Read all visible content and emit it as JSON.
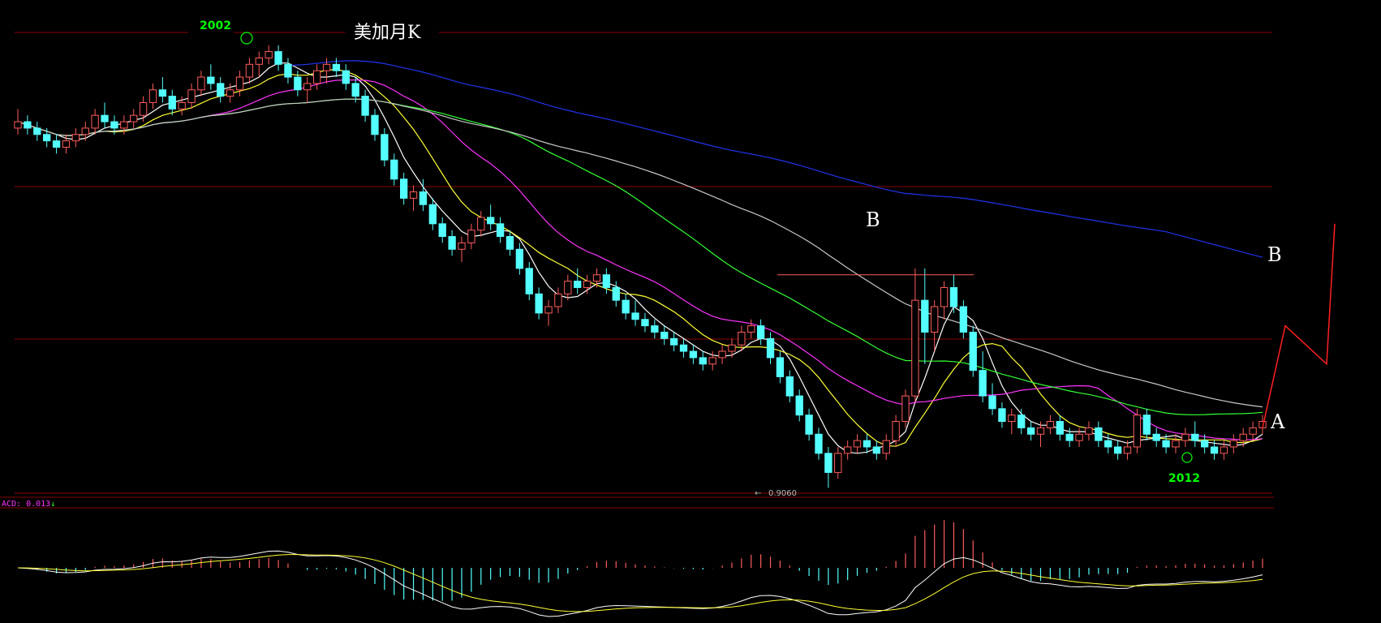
{
  "title": "美加月K",
  "annotations": {
    "year_high": "2002",
    "year_low": "2012",
    "wave_b_mid": "B",
    "wave_b_right": "B",
    "wave_a": "A",
    "low_value": "0.9060"
  },
  "macd_label": {
    "prefix": "ACD: 0.013",
    "arrow": "↓"
  },
  "colors": {
    "up": "#ff5c5c",
    "down": "#54ffff",
    "ma5": "#ffffff",
    "ma10": "#ffff33",
    "ma20": "#ff33ff",
    "ma40": "#33ff33",
    "ma60": "#c8c8c8",
    "ma120": "#2233ee",
    "grid": "#8b0000",
    "projection": "#ff2020",
    "macd_dif": "#ffffff",
    "macd_dea": "#ffff33"
  },
  "chart_data": {
    "type": "candlestick",
    "instrument": "美加月K",
    "y_range": [
      0.9,
      1.62
    ],
    "key_points": [
      {
        "label": "2002",
        "value": 1.6
      },
      {
        "label": "2012",
        "value": 0.95
      },
      {
        "label": "0.9060",
        "value": 0.906
      }
    ],
    "ohlc": [
      [
        1.47,
        1.5,
        1.46,
        1.48
      ],
      [
        1.48,
        1.49,
        1.46,
        1.47
      ],
      [
        1.47,
        1.48,
        1.45,
        1.46
      ],
      [
        1.46,
        1.47,
        1.44,
        1.45
      ],
      [
        1.45,
        1.46,
        1.43,
        1.44
      ],
      [
        1.44,
        1.46,
        1.43,
        1.45
      ],
      [
        1.45,
        1.47,
        1.44,
        1.46
      ],
      [
        1.46,
        1.48,
        1.45,
        1.47
      ],
      [
        1.47,
        1.5,
        1.46,
        1.49
      ],
      [
        1.49,
        1.51,
        1.47,
        1.48
      ],
      [
        1.48,
        1.49,
        1.46,
        1.47
      ],
      [
        1.47,
        1.49,
        1.46,
        1.48
      ],
      [
        1.48,
        1.5,
        1.47,
        1.49
      ],
      [
        1.49,
        1.52,
        1.48,
        1.51
      ],
      [
        1.51,
        1.54,
        1.5,
        1.53
      ],
      [
        1.53,
        1.55,
        1.51,
        1.52
      ],
      [
        1.52,
        1.53,
        1.49,
        1.5
      ],
      [
        1.5,
        1.52,
        1.49,
        1.51
      ],
      [
        1.51,
        1.54,
        1.5,
        1.53
      ],
      [
        1.53,
        1.56,
        1.52,
        1.55
      ],
      [
        1.55,
        1.57,
        1.53,
        1.54
      ],
      [
        1.54,
        1.55,
        1.51,
        1.52
      ],
      [
        1.52,
        1.54,
        1.51,
        1.53
      ],
      [
        1.53,
        1.56,
        1.52,
        1.55
      ],
      [
        1.55,
        1.58,
        1.54,
        1.57
      ],
      [
        1.57,
        1.59,
        1.55,
        1.58
      ],
      [
        1.58,
        1.6,
        1.57,
        1.59
      ],
      [
        1.59,
        1.6,
        1.56,
        1.57
      ],
      [
        1.57,
        1.58,
        1.54,
        1.55
      ],
      [
        1.55,
        1.56,
        1.52,
        1.53
      ],
      [
        1.53,
        1.55,
        1.51,
        1.54
      ],
      [
        1.54,
        1.57,
        1.53,
        1.56
      ],
      [
        1.56,
        1.58,
        1.54,
        1.57
      ],
      [
        1.57,
        1.58,
        1.55,
        1.56
      ],
      [
        1.56,
        1.57,
        1.53,
        1.54
      ],
      [
        1.54,
        1.55,
        1.51,
        1.52
      ],
      [
        1.52,
        1.53,
        1.48,
        1.49
      ],
      [
        1.49,
        1.5,
        1.45,
        1.46
      ],
      [
        1.46,
        1.47,
        1.41,
        1.42
      ],
      [
        1.42,
        1.43,
        1.38,
        1.39
      ],
      [
        1.39,
        1.4,
        1.35,
        1.36
      ],
      [
        1.36,
        1.38,
        1.34,
        1.37
      ],
      [
        1.37,
        1.39,
        1.34,
        1.35
      ],
      [
        1.35,
        1.36,
        1.31,
        1.32
      ],
      [
        1.32,
        1.33,
        1.29,
        1.3
      ],
      [
        1.3,
        1.31,
        1.27,
        1.28
      ],
      [
        1.28,
        1.3,
        1.26,
        1.29
      ],
      [
        1.29,
        1.32,
        1.28,
        1.31
      ],
      [
        1.31,
        1.34,
        1.3,
        1.33
      ],
      [
        1.33,
        1.35,
        1.31,
        1.32
      ],
      [
        1.32,
        1.33,
        1.29,
        1.3
      ],
      [
        1.3,
        1.31,
        1.27,
        1.28
      ],
      [
        1.28,
        1.29,
        1.24,
        1.25
      ],
      [
        1.25,
        1.26,
        1.2,
        1.21
      ],
      [
        1.21,
        1.22,
        1.17,
        1.18
      ],
      [
        1.18,
        1.2,
        1.16,
        1.19
      ],
      [
        1.19,
        1.22,
        1.18,
        1.21
      ],
      [
        1.21,
        1.24,
        1.2,
        1.23
      ],
      [
        1.23,
        1.25,
        1.21,
        1.22
      ],
      [
        1.22,
        1.24,
        1.21,
        1.23
      ],
      [
        1.23,
        1.25,
        1.22,
        1.24
      ],
      [
        1.24,
        1.25,
        1.21,
        1.22
      ],
      [
        1.22,
        1.23,
        1.19,
        1.2
      ],
      [
        1.2,
        1.21,
        1.17,
        1.18
      ],
      [
        1.18,
        1.2,
        1.16,
        1.17
      ],
      [
        1.17,
        1.18,
        1.15,
        1.16
      ],
      [
        1.16,
        1.17,
        1.14,
        1.15
      ],
      [
        1.15,
        1.16,
        1.13,
        1.14
      ],
      [
        1.14,
        1.15,
        1.12,
        1.13
      ],
      [
        1.13,
        1.14,
        1.11,
        1.12
      ],
      [
        1.12,
        1.13,
        1.1,
        1.11
      ],
      [
        1.11,
        1.12,
        1.09,
        1.1
      ],
      [
        1.1,
        1.12,
        1.09,
        1.11
      ],
      [
        1.11,
        1.13,
        1.1,
        1.12
      ],
      [
        1.12,
        1.14,
        1.11,
        1.13
      ],
      [
        1.13,
        1.16,
        1.12,
        1.15
      ],
      [
        1.15,
        1.17,
        1.14,
        1.16
      ],
      [
        1.16,
        1.17,
        1.13,
        1.14
      ],
      [
        1.14,
        1.15,
        1.1,
        1.11
      ],
      [
        1.11,
        1.12,
        1.07,
        1.08
      ],
      [
        1.08,
        1.09,
        1.04,
        1.05
      ],
      [
        1.05,
        1.06,
        1.01,
        1.02
      ],
      [
        1.02,
        1.03,
        0.98,
        0.99
      ],
      [
        0.99,
        1.0,
        0.95,
        0.96
      ],
      [
        0.96,
        0.97,
        0.906,
        0.93
      ],
      [
        0.93,
        0.97,
        0.92,
        0.96
      ],
      [
        0.96,
        0.98,
        0.95,
        0.97
      ],
      [
        0.97,
        0.99,
        0.96,
        0.98
      ],
      [
        0.98,
        0.99,
        0.96,
        0.97
      ],
      [
        0.97,
        0.98,
        0.95,
        0.96
      ],
      [
        0.96,
        0.99,
        0.95,
        0.98
      ],
      [
        0.98,
        1.02,
        0.97,
        1.01
      ],
      [
        1.01,
        1.06,
        1.0,
        1.05
      ],
      [
        1.05,
        1.25,
        1.04,
        1.2
      ],
      [
        1.2,
        1.25,
        1.1,
        1.15
      ],
      [
        1.15,
        1.2,
        1.12,
        1.19
      ],
      [
        1.19,
        1.23,
        1.17,
        1.22
      ],
      [
        1.22,
        1.24,
        1.18,
        1.19
      ],
      [
        1.19,
        1.2,
        1.14,
        1.15
      ],
      [
        1.15,
        1.16,
        1.08,
        1.09
      ],
      [
        1.09,
        1.12,
        1.04,
        1.05
      ],
      [
        1.05,
        1.07,
        1.02,
        1.03
      ],
      [
        1.03,
        1.04,
        1.0,
        1.01
      ],
      [
        1.01,
        1.03,
        0.99,
        1.02
      ],
      [
        1.02,
        1.03,
        0.99,
        1.0
      ],
      [
        1.0,
        1.01,
        0.98,
        0.99
      ],
      [
        0.99,
        1.01,
        0.97,
        1.0
      ],
      [
        1.0,
        1.02,
        0.99,
        1.01
      ],
      [
        1.01,
        1.02,
        0.98,
        0.99
      ],
      [
        0.99,
        1.0,
        0.97,
        0.98
      ],
      [
        0.98,
        1.0,
        0.97,
        0.99
      ],
      [
        0.99,
        1.01,
        0.98,
        1.0
      ],
      [
        1.0,
        1.01,
        0.97,
        0.98
      ],
      [
        0.98,
        0.99,
        0.96,
        0.97
      ],
      [
        0.97,
        0.98,
        0.95,
        0.96
      ],
      [
        0.96,
        0.98,
        0.95,
        0.97
      ],
      [
        0.97,
        1.03,
        0.96,
        1.02
      ],
      [
        1.02,
        1.03,
        0.98,
        0.99
      ],
      [
        0.99,
        1.0,
        0.97,
        0.98
      ],
      [
        0.98,
        0.99,
        0.96,
        0.97
      ],
      [
        0.97,
        0.99,
        0.96,
        0.98
      ],
      [
        0.98,
        1.0,
        0.97,
        0.99
      ],
      [
        0.99,
        1.01,
        0.97,
        0.98
      ],
      [
        0.98,
        0.99,
        0.96,
        0.97
      ],
      [
        0.97,
        0.98,
        0.95,
        0.96
      ],
      [
        0.96,
        0.98,
        0.95,
        0.97
      ],
      [
        0.97,
        0.99,
        0.96,
        0.98
      ],
      [
        0.98,
        1.0,
        0.97,
        0.99
      ],
      [
        0.99,
        1.01,
        0.98,
        1.0
      ],
      [
        1.0,
        1.02,
        0.99,
        1.01
      ]
    ],
    "moving_averages": [
      "MA5",
      "MA10",
      "MA20",
      "MA40",
      "MA60",
      "MA120"
    ],
    "projection": [
      {
        "label": "A",
        "value": 1.0
      },
      {
        "label": "B",
        "value": 1.16
      },
      {
        "value": 1.1
      },
      {
        "value": 1.32
      }
    ],
    "resistance_level": 1.24,
    "macd": {
      "name": "MACD",
      "value": 0.013
    }
  }
}
